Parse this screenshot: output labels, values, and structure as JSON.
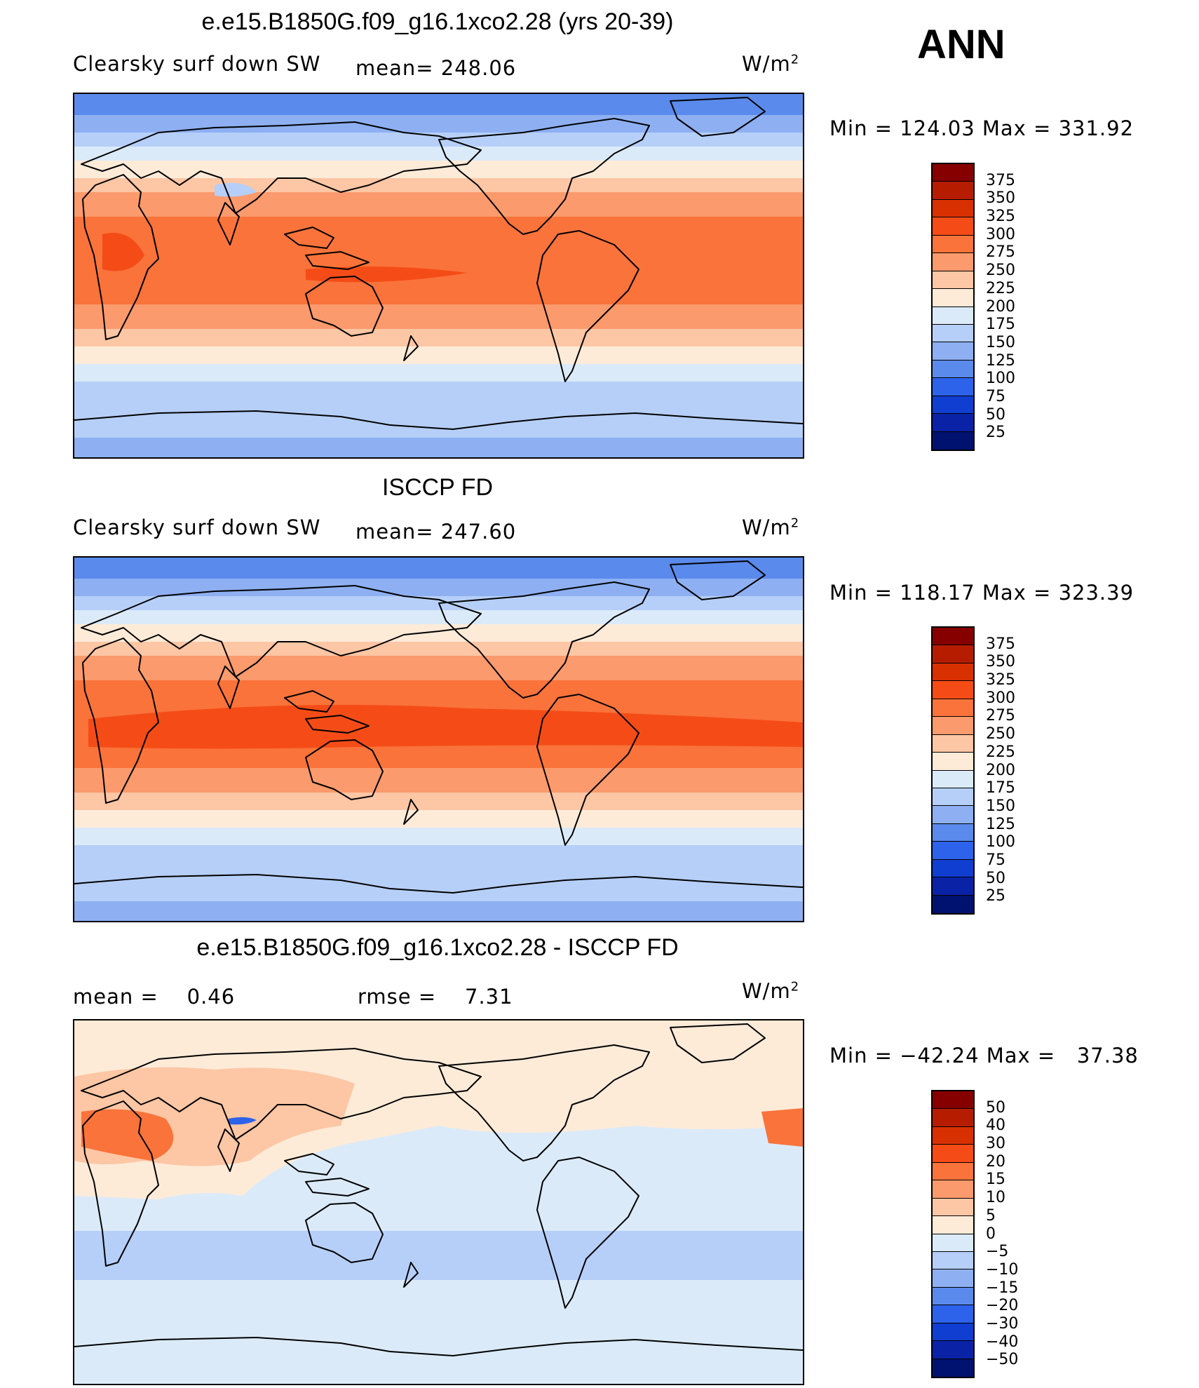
{
  "season": "ANN",
  "units_base": "W/m",
  "units_exp": "2",
  "panels": [
    {
      "id": "model",
      "title": "e.e15.B1850G.f09_g16.1xco2.28 (yrs 20-39)",
      "left_label": "Clearsky surf down SW",
      "mid_label": "mean= 248.06",
      "minmax": "Min = 124.03 Max = 331.92",
      "colorbar": {
        "levels": [
          "375",
          "350",
          "325",
          "300",
          "275",
          "250",
          "225",
          "200",
          "175",
          "150",
          "125",
          "100",
          "75",
          "50",
          "25"
        ],
        "colors": [
          "#870000",
          "#b61d00",
          "#d93000",
          "#f54c17",
          "#f9733a",
          "#fb9a6c",
          "#fdc6a4",
          "#fdebd8",
          "#dbeaf9",
          "#b6cff8",
          "#8eb0f2",
          "#5a8aeb",
          "#2d62eb",
          "#0f3ed1",
          "#0a22a6",
          "#001270"
        ]
      }
    },
    {
      "id": "obs",
      "title": "ISCCP FD",
      "left_label": "Clearsky surf down SW",
      "mid_label": "mean= 247.60",
      "minmax": "Min = 118.17 Max = 323.39",
      "colorbar": {
        "levels": [
          "375",
          "350",
          "325",
          "300",
          "275",
          "250",
          "225",
          "200",
          "175",
          "150",
          "125",
          "100",
          "75",
          "50",
          "25"
        ],
        "colors": [
          "#870000",
          "#b61d00",
          "#d93000",
          "#f54c17",
          "#f9733a",
          "#fb9a6c",
          "#fdc6a4",
          "#fdebd8",
          "#dbeaf9",
          "#b6cff8",
          "#8eb0f2",
          "#5a8aeb",
          "#2d62eb",
          "#0f3ed1",
          "#0a22a6",
          "#001270"
        ]
      }
    },
    {
      "id": "diff",
      "title": "e.e15.B1850G.f09_g16.1xco2.28 - ISCCP FD",
      "left_label": "mean =    0.46",
      "mid_label": "rmse =    7.31",
      "minmax": "Min = −42.24 Max =   37.38",
      "colorbar": {
        "levels": [
          "50",
          "40",
          "30",
          "20",
          "15",
          "10",
          "5",
          "0",
          "−5",
          "−10",
          "−15",
          "−20",
          "−30",
          "−40",
          "−50"
        ],
        "colors": [
          "#870000",
          "#b61d00",
          "#d93000",
          "#f54c17",
          "#f9733a",
          "#fb9a6c",
          "#fdc6a4",
          "#fdebd8",
          "#dbeaf9",
          "#b6cff8",
          "#8eb0f2",
          "#5a8aeb",
          "#2d62eb",
          "#0f3ed1",
          "#0a22a6",
          "#001270"
        ]
      }
    }
  ],
  "map_colors": {
    "polar_n": "#5a8aeb",
    "subpolar": "#8eb0f2",
    "cool": "#b6cff8",
    "mild": "#dbeaf9",
    "warm_light": "#fdebd8",
    "warm": "#fdc6a4",
    "hot_light": "#fb9a6c",
    "hot": "#f9733a",
    "hottest": "#f54c17",
    "diff_pos": "#fdc6a4",
    "diff_pos2": "#f9733a",
    "diff_zero": "#fdebd8",
    "diff_neg": "#dbeaf9",
    "diff_neg2": "#b6cff8",
    "diff_min": "#2d62eb",
    "coast": "#000000"
  }
}
